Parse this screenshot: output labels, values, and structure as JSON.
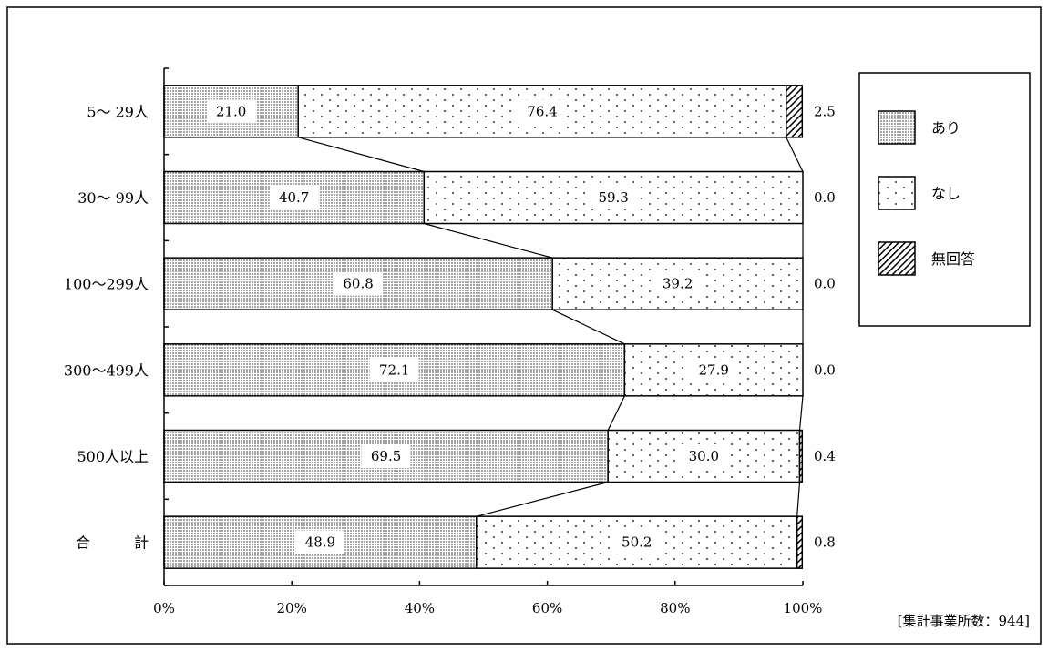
{
  "chart_data": {
    "type": "bar",
    "orientation": "horizontal",
    "stacked": "percent",
    "categories": [
      "5～ 29人",
      "30～ 99人",
      "100～299人",
      "300～499人",
      "500人以上",
      "合　　　計"
    ],
    "series": [
      {
        "name": "あり",
        "values": [
          21.0,
          40.7,
          60.8,
          72.1,
          69.5,
          48.9
        ],
        "pattern": "dense-dots"
      },
      {
        "name": "なし",
        "values": [
          76.4,
          59.3,
          39.2,
          27.9,
          30.0,
          50.2
        ],
        "pattern": "sparse-dots"
      },
      {
        "name": "無回答",
        "values": [
          2.5,
          0.0,
          0.0,
          0.0,
          0.4,
          0.8
        ],
        "pattern": "diagonal-hatch"
      }
    ],
    "data_labels": {
      "あり": [
        "21.0",
        "40.7",
        "60.8",
        "72.1",
        "69.5",
        "48.9"
      ],
      "なし": [
        "76.4",
        "59.3",
        "39.2",
        "27.9",
        "30.0",
        "50.2"
      ],
      "無回答": [
        "2.5",
        "0.0",
        "0.0",
        "0.0",
        "0.4",
        "0.8"
      ]
    },
    "x_ticks": [
      "0%",
      "20%",
      "40%",
      "60%",
      "80%",
      "100%"
    ],
    "xlim": [
      0,
      100
    ],
    "series_connector_lines": true,
    "grid": false,
    "legend": {
      "placement": "right",
      "entries": [
        "あり",
        "なし",
        "無回答"
      ]
    },
    "note": "[集計事業所数：944]"
  }
}
